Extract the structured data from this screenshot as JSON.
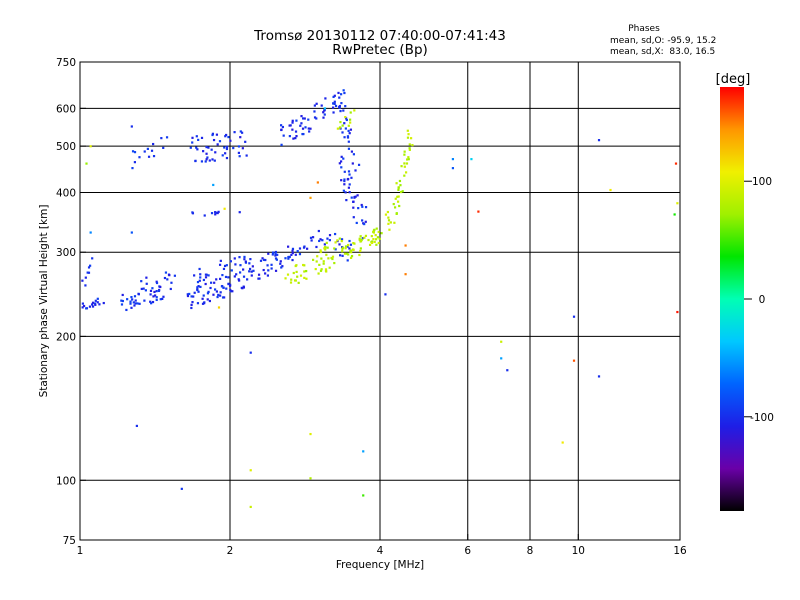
{
  "chart_data": {
    "type": "scatter",
    "title": "Tromsø 20130112 07:40:00-07:41:43",
    "subtitle": "RwPretec (Bp)",
    "xlabel": "Frequency [MHz]",
    "ylabel": "Stationary phase Virtual Height [km]",
    "xscale": "log",
    "yscale": "log",
    "xlim": [
      1,
      16
    ],
    "ylim": [
      75,
      750
    ],
    "grid": true,
    "x_ticks": [
      {
        "value": 1,
        "label": "1"
      },
      {
        "value": 2,
        "label": "2"
      },
      {
        "value": 4,
        "label": "4"
      },
      {
        "value": 6,
        "label": "6"
      },
      {
        "value": 8,
        "label": "8"
      },
      {
        "value": 10,
        "label": "10"
      },
      {
        "value": 16,
        "label": "16"
      }
    ],
    "x_gridlines": [
      2,
      4,
      6,
      8,
      10
    ],
    "y_ticks": [
      {
        "value": 75,
        "label": "75"
      },
      {
        "value": 100,
        "label": "100"
      },
      {
        "value": 200,
        "label": "200"
      },
      {
        "value": 300,
        "label": "300"
      },
      {
        "value": 400,
        "label": "400"
      },
      {
        "value": 500,
        "label": "500"
      },
      {
        "value": 600,
        "label": "600"
      },
      {
        "value": 750,
        "label": "750"
      }
    ],
    "y_gridlines": [
      100,
      200,
      300,
      400,
      500,
      600
    ],
    "stats": {
      "title": "Phases",
      "o_line": "mean, sd,O: -95.9, 15.2",
      "x_line": "mean, sd,X:  83.0, 16.5",
      "o_mean": -95.9,
      "o_sd": 15.2,
      "x_mean": 83.0,
      "x_sd": 16.5
    },
    "colorbar": {
      "label": "[deg]",
      "range": [
        -180,
        180
      ],
      "ticks": [
        {
          "value": 100,
          "label": "100"
        },
        {
          "value": 0,
          "label": "0"
        },
        {
          "value": -100,
          "label": "-100"
        }
      ],
      "colormap": [
        "#000000",
        "#6a00a8",
        "#1e1ee6",
        "#0064ff",
        "#00c8ff",
        "#00ffb4",
        "#00e600",
        "#a0f000",
        "#f0f000",
        "#ff9600",
        "#ff0000"
      ]
    },
    "series": [
      {
        "name": "O",
        "phase": -100,
        "traces": [
          {
            "f0": 1.0,
            "f1": 1.12,
            "h0": 232,
            "h1": 238,
            "n": 16,
            "spread": 10
          },
          {
            "f0": 1.0,
            "f1": 1.06,
            "h0": 250,
            "h1": 290,
            "n": 8,
            "spread": 8
          },
          {
            "f0": 1.2,
            "f1": 1.55,
            "h0": 235,
            "h1": 250,
            "n": 44,
            "spread": 18
          },
          {
            "f0": 1.3,
            "f1": 1.55,
            "h0": 255,
            "h1": 268,
            "n": 12,
            "spread": 12
          },
          {
            "f0": 1.65,
            "f1": 2.0,
            "h0": 240,
            "h1": 255,
            "n": 50,
            "spread": 22
          },
          {
            "f0": 1.65,
            "f1": 2.2,
            "h0": 265,
            "h1": 290,
            "n": 30,
            "spread": 16
          },
          {
            "f0": 2.0,
            "f1": 2.7,
            "h0": 255,
            "h1": 300,
            "n": 50,
            "spread": 20
          },
          {
            "f0": 2.4,
            "f1": 3.0,
            "h0": 290,
            "h1": 320,
            "n": 22,
            "spread": 16
          },
          {
            "f0": 1.27,
            "f1": 1.5,
            "h0": 470,
            "h1": 500,
            "n": 14,
            "spread": 22
          },
          {
            "f0": 1.65,
            "f1": 2.15,
            "h0": 490,
            "h1": 505,
            "n": 50,
            "spread": 28
          },
          {
            "f0": 2.5,
            "f1": 2.9,
            "h0": 520,
            "h1": 560,
            "n": 30,
            "spread": 22
          },
          {
            "f0": 2.9,
            "f1": 3.4,
            "h0": 580,
            "h1": 640,
            "n": 30,
            "spread": 22
          },
          {
            "f0": 3.3,
            "f1": 3.6,
            "h0": 600,
            "h1": 470,
            "n": 22,
            "spread": 30
          },
          {
            "f0": 3.3,
            "f1": 3.75,
            "h0": 460,
            "h1": 340,
            "n": 40,
            "spread": 35
          },
          {
            "f0": 3.0,
            "f1": 3.5,
            "h0": 330,
            "h1": 300,
            "n": 20,
            "spread": 20
          },
          {
            "f0": 1.65,
            "f1": 2.1,
            "h0": 360,
            "h1": 362,
            "n": 10,
            "spread": 4
          }
        ]
      },
      {
        "name": "X",
        "phase": 83,
        "traces": [
          {
            "f0": 2.6,
            "f1": 3.5,
            "h0": 265,
            "h1": 300,
            "n": 50,
            "spread": 18
          },
          {
            "f0": 3.4,
            "f1": 4.0,
            "h0": 295,
            "h1": 330,
            "n": 30,
            "spread": 16
          },
          {
            "f0": 3.9,
            "f1": 4.4,
            "h0": 320,
            "h1": 380,
            "n": 24,
            "spread": 18
          },
          {
            "f0": 4.3,
            "f1": 4.6,
            "h0": 380,
            "h1": 520,
            "n": 30,
            "spread": 24
          },
          {
            "f0": 3.3,
            "f1": 3.6,
            "h0": 560,
            "h1": 580,
            "n": 10,
            "spread": 14
          },
          {
            "f0": 3.0,
            "f1": 3.4,
            "h0": 300,
            "h1": 325,
            "n": 14,
            "spread": 12
          }
        ]
      }
    ],
    "isolated_points": [
      {
        "x": 1.05,
        "y": 500,
        "phase": 100
      },
      {
        "x": 1.03,
        "y": 460,
        "phase": 70
      },
      {
        "x": 1.05,
        "y": 330,
        "phase": -60
      },
      {
        "x": 1.27,
        "y": 550,
        "phase": -100
      },
      {
        "x": 1.27,
        "y": 330,
        "phase": -80
      },
      {
        "x": 1.3,
        "y": 130,
        "phase": -100
      },
      {
        "x": 1.6,
        "y": 96,
        "phase": -95
      },
      {
        "x": 1.9,
        "y": 230,
        "phase": 120
      },
      {
        "x": 1.95,
        "y": 370,
        "phase": 110
      },
      {
        "x": 1.85,
        "y": 415,
        "phase": -50
      },
      {
        "x": 2.2,
        "y": 185,
        "phase": -100
      },
      {
        "x": 2.2,
        "y": 105,
        "phase": 100
      },
      {
        "x": 2.2,
        "y": 88,
        "phase": 90
      },
      {
        "x": 2.9,
        "y": 125,
        "phase": 100
      },
      {
        "x": 2.9,
        "y": 101,
        "phase": 80
      },
      {
        "x": 2.9,
        "y": 390,
        "phase": 140
      },
      {
        "x": 3.0,
        "y": 420,
        "phase": 150
      },
      {
        "x": 3.1,
        "y": 600,
        "phase": -40
      },
      {
        "x": 3.7,
        "y": 115,
        "phase": -50
      },
      {
        "x": 3.7,
        "y": 93,
        "phase": 50
      },
      {
        "x": 4.1,
        "y": 245,
        "phase": -100
      },
      {
        "x": 4.5,
        "y": 270,
        "phase": 150
      },
      {
        "x": 4.5,
        "y": 310,
        "phase": 150
      },
      {
        "x": 5.6,
        "y": 470,
        "phase": -60
      },
      {
        "x": 5.6,
        "y": 450,
        "phase": -80
      },
      {
        "x": 6.1,
        "y": 470,
        "phase": -30
      },
      {
        "x": 6.3,
        "y": 365,
        "phase": 170
      },
      {
        "x": 7.0,
        "y": 195,
        "phase": 90
      },
      {
        "x": 7.0,
        "y": 180,
        "phase": -50
      },
      {
        "x": 7.2,
        "y": 170,
        "phase": -100
      },
      {
        "x": 9.3,
        "y": 120,
        "phase": 110
      },
      {
        "x": 9.8,
        "y": 220,
        "phase": -100
      },
      {
        "x": 9.8,
        "y": 178,
        "phase": 160
      },
      {
        "x": 11.0,
        "y": 515,
        "phase": -100
      },
      {
        "x": 11.0,
        "y": 165,
        "phase": -100
      },
      {
        "x": 11.6,
        "y": 405,
        "phase": 110
      },
      {
        "x": 15.7,
        "y": 460,
        "phase": 170
      },
      {
        "x": 15.6,
        "y": 360,
        "phase": 40
      },
      {
        "x": 15.8,
        "y": 380,
        "phase": 100
      },
      {
        "x": 15.8,
        "y": 225,
        "phase": 175
      }
    ]
  }
}
